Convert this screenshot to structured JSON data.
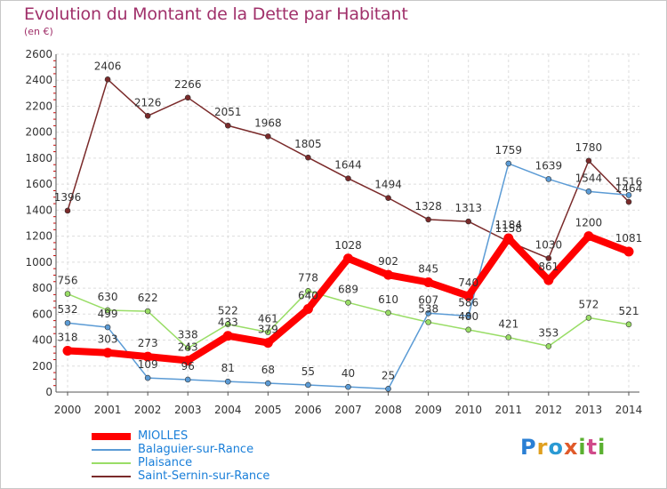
{
  "chart_data": {
    "type": "line",
    "title": "Evolution du Montant de la Dette par Habitant",
    "subtitle": "(en €)",
    "categories": [
      "2000",
      "2001",
      "2002",
      "2003",
      "2004",
      "2005",
      "2006",
      "2007",
      "2008",
      "2009",
      "2010",
      "2011",
      "2012",
      "2013",
      "2014"
    ],
    "ylim": [
      0,
      2600
    ],
    "yticks": [
      "0",
      "200",
      "400",
      "600",
      "800",
      "1000",
      "1200",
      "1400",
      "1600",
      "1800",
      "2000",
      "2200",
      "2400",
      "2600"
    ],
    "grid": true,
    "legend_position": "bottom-left",
    "series": [
      {
        "name": "MIOLLES",
        "color": "#ff0000",
        "values": [
          318,
          303,
          273,
          243,
          433,
          379,
          640,
          1028,
          902,
          845,
          740,
          1184,
          861,
          1200,
          1081
        ],
        "labels": [
          "318",
          "303",
          "273",
          "243",
          "433",
          "379",
          "640",
          "1028",
          "902",
          "845",
          "740",
          "1184",
          "861",
          "1200",
          "1081"
        ]
      },
      {
        "name": "Balaguier-sur-Rance",
        "color": "#5b9bd5",
        "values": [
          532,
          499,
          109,
          96,
          81,
          68,
          55,
          40,
          25,
          607,
          586,
          1759,
          1639,
          1544,
          1516
        ],
        "labels": [
          "532",
          "499",
          "109",
          "96",
          "81",
          "68",
          "55",
          "40",
          "25",
          "607",
          "586",
          "1759",
          "1639",
          "1544",
          "1516"
        ]
      },
      {
        "name": "Plaisance",
        "color": "#99dd66",
        "values": [
          756,
          630,
          622,
          338,
          522,
          461,
          778,
          689,
          610,
          538,
          480,
          421,
          353,
          572,
          521
        ],
        "labels": [
          "756",
          "630",
          "622",
          "338",
          "522",
          "461",
          "778",
          "689",
          "610",
          "538",
          "480",
          "421",
          "353",
          "572",
          "521"
        ]
      },
      {
        "name": "Saint-Sernin-sur-Rance",
        "color": "#7a2a2a",
        "values": [
          1396,
          2406,
          2126,
          2266,
          2051,
          1968,
          1805,
          1644,
          1494,
          1328,
          1313,
          1158,
          1030,
          1780,
          1464
        ],
        "labels": [
          "1396",
          "2406",
          "2126",
          "2266",
          "2051",
          "1968",
          "1805",
          "1644",
          "1494",
          "1328",
          "1313",
          "1158",
          "1030",
          "1780",
          "1464"
        ]
      }
    ]
  },
  "logo_text": "Proxiti"
}
